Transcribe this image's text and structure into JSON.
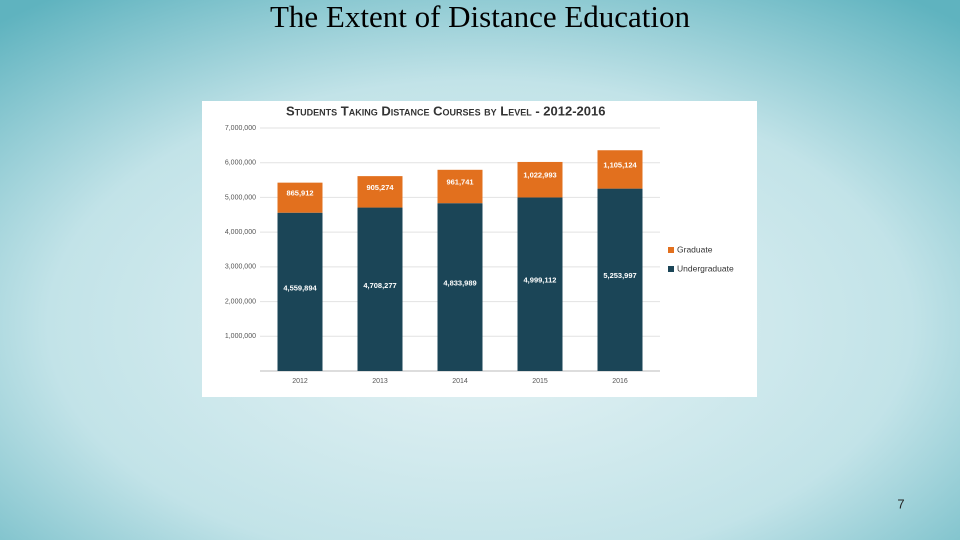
{
  "title": "The Extent of Distance Education",
  "page_number": "7",
  "chart_data": {
    "type": "stacked_bar",
    "title": "Students Taking Distance Courses by Level - 2012-2016",
    "categories": [
      "2012",
      "2013",
      "2014",
      "2015",
      "2016"
    ],
    "series": [
      {
        "name": "Undergraduate",
        "color": "#1b4557",
        "values": [
          4559894,
          4708277,
          4833989,
          4999112,
          5253997
        ],
        "value_labels": [
          "4,559,894",
          "4,708,277",
          "4,833,989",
          "4,999,112",
          "5,253,997"
        ]
      },
      {
        "name": "Graduate",
        "color": "#e2701e",
        "values": [
          865912,
          905274,
          961741,
          1022993,
          1105124
        ],
        "value_labels": [
          "865,912",
          "905,274",
          "961,741",
          "1,022,993",
          "1,105,124"
        ]
      }
    ],
    "ylim": [
      0,
      7000000
    ],
    "yticks": [
      {
        "value": 1000000,
        "label": "1,000,000"
      },
      {
        "value": 2000000,
        "label": "2,000,000"
      },
      {
        "value": 3000000,
        "label": "3,000,000"
      },
      {
        "value": 4000000,
        "label": "4,000,000"
      },
      {
        "value": 5000000,
        "label": "5,000,000"
      },
      {
        "value": 6000000,
        "label": "6,000,000"
      },
      {
        "value": 7000000,
        "label": "7,000,000"
      }
    ],
    "grid": true
  }
}
